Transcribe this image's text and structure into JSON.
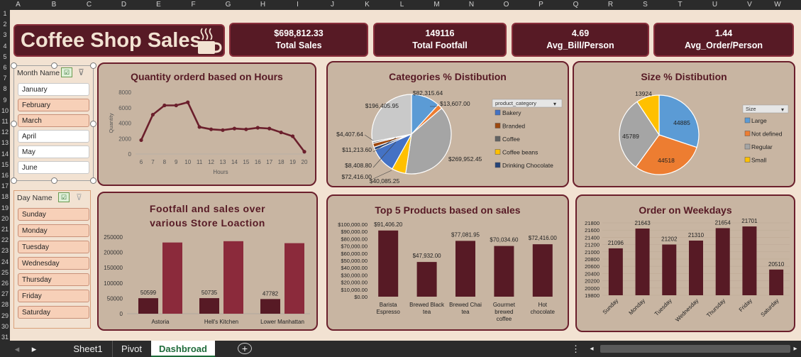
{
  "columns": [
    "A",
    "B",
    "C",
    "D",
    "E",
    "F",
    "G",
    "H",
    "I",
    "J",
    "K",
    "L",
    "M",
    "N",
    "O",
    "P",
    "Q",
    "R",
    "S",
    "T",
    "U",
    "V",
    "W"
  ],
  "rows": [
    "1",
    "2",
    "3",
    "4",
    "5",
    "6",
    "7",
    "8",
    "9",
    "10",
    "11",
    "12",
    "13",
    "14",
    "15",
    "16",
    "17",
    "18",
    "19",
    "20",
    "21",
    "22",
    "23",
    "24",
    "25",
    "26",
    "27",
    "28",
    "29",
    "30",
    "31"
  ],
  "dashboard_title": "Coffee Shop Sales",
  "kpis": [
    {
      "value": "$698,812.33",
      "label": "Total Sales"
    },
    {
      "value": "149116",
      "label": "Total Footfall"
    },
    {
      "value": "4.69",
      "label": "Avg_Bill/Person"
    },
    {
      "value": "1.44",
      "label": "Avg_Order/Person"
    }
  ],
  "month_slicer": {
    "header": "Month Name",
    "items": [
      {
        "label": "January",
        "selected": false
      },
      {
        "label": "February",
        "selected": true
      },
      {
        "label": "March",
        "selected": true
      },
      {
        "label": "April",
        "selected": false
      },
      {
        "label": "May",
        "selected": false
      },
      {
        "label": "June",
        "selected": false
      }
    ]
  },
  "day_slicer": {
    "header": "Day Name",
    "items": [
      {
        "label": "Sunday",
        "selected": true
      },
      {
        "label": "Monday",
        "selected": true
      },
      {
        "label": "Tuesday",
        "selected": true
      },
      {
        "label": "Wednesday",
        "selected": true
      },
      {
        "label": "Thursday",
        "selected": true
      },
      {
        "label": "Friday",
        "selected": true
      },
      {
        "label": "Saturday",
        "selected": true
      }
    ]
  },
  "tabs": {
    "sheet1": "Sheet1",
    "pivot": "Pivot",
    "dashboard": "Dashbroad",
    "add": "+",
    "menu": "⋮"
  },
  "colors": {
    "dark": "#571a25",
    "accent": "#8b2a3b",
    "line": "#6b1f2c",
    "blue": "#5b9bd5",
    "orange": "#ed7d31",
    "gray": "#a5a5a5",
    "gold": "#ffc000",
    "navy": "#4472c4"
  },
  "chart_data": [
    {
      "type": "line",
      "title": "Quantity orderd based on Hours",
      "xlabel": "Hours",
      "ylabel": "Quantity",
      "x": [
        6,
        7,
        8,
        9,
        10,
        11,
        12,
        13,
        14,
        15,
        16,
        17,
        18,
        19,
        20
      ],
      "values": [
        1800,
        5100,
        6300,
        6300,
        6700,
        3500,
        3200,
        3100,
        3300,
        3200,
        3400,
        3300,
        2800,
        2300,
        300
      ],
      "yticks": [
        0,
        2000,
        4000,
        6000,
        8000
      ],
      "ylim": [
        0,
        8000
      ]
    },
    {
      "type": "pie",
      "title": "Categories % Distibution",
      "legend_title": "product_category",
      "labels": [
        "Bakery",
        "Branded",
        "Coffee",
        "Coffee beans",
        "Drinking Chocolate"
      ],
      "slices": [
        {
          "label": "$82,315.64",
          "value": 82315.64
        },
        {
          "label": "$13,607.00",
          "value": 13607.0
        },
        {
          "label": "$269,952.45",
          "value": 269952.45
        },
        {
          "label": "$40,085.25",
          "value": 40085.25
        },
        {
          "label": "$72,416.00",
          "value": 72416.0
        },
        {
          "label": "$8,408.80",
          "value": 8408.8
        },
        {
          "label": "$11,213.60",
          "value": 11213.6
        },
        {
          "label": "$4,407.64",
          "value": 4407.64
        },
        {
          "label": "$196,405.95",
          "value": 196405.95
        }
      ]
    },
    {
      "type": "pie",
      "title": "Size % Distibution",
      "legend_title": "Size",
      "labels": [
        "Large",
        "Not defined",
        "Regular",
        "Small"
      ],
      "slices": [
        {
          "label": "44885",
          "value": 44885
        },
        {
          "label": "44518",
          "value": 44518
        },
        {
          "label": "45789",
          "value": 45789
        },
        {
          "label": "13924",
          "value": 13924
        }
      ]
    },
    {
      "type": "bar",
      "title": "Footfall and sales over various Store Loaction",
      "categories": [
        "Astoria",
        "Hell's Kitchen",
        "Lower Manhattan"
      ],
      "series": [
        {
          "values": [
            50599,
            50735,
            47782
          ],
          "labels": [
            "50599",
            "50735",
            "47782"
          ]
        },
        {
          "values": [
            232243,
            236511,
            230058
          ]
        }
      ],
      "yticks": [
        0,
        50000,
        100000,
        150000,
        200000,
        250000
      ],
      "ylim": [
        0,
        250000
      ]
    },
    {
      "type": "bar",
      "title": "Top 5 Products based on sales",
      "categories": [
        "Barista Espresso",
        "Brewed Black tea",
        "Brewed Chai tea",
        "Gourmet brewed coffee",
        "Hot chocolate"
      ],
      "values": [
        91406.2,
        47932.0,
        77081.95,
        70034.6,
        72416.0
      ],
      "labels": [
        "$91,406.20",
        "$47,932.00",
        "$77,081.95",
        "$70,034.60",
        "$72,416.00"
      ],
      "yticks": [
        "$0.00",
        "$10,000.00",
        "$20,000.00",
        "$30,000.00",
        "$40,000.00",
        "$50,000.00",
        "$60,000.00",
        "$70,000.00",
        "$80,000.00",
        "$90,000.00",
        "$100,000.00"
      ],
      "ylim": [
        0,
        100000
      ]
    },
    {
      "type": "bar",
      "title": "Order on Weekdays",
      "categories": [
        "Sunday",
        "Monday",
        "Tuesday",
        "Wednesday",
        "Thursday",
        "Friday",
        "Saturday"
      ],
      "values": [
        21096,
        21643,
        21202,
        21310,
        21654,
        21701,
        20510
      ],
      "labels": [
        "21096",
        "21643",
        "21202",
        "21310",
        "21654",
        "21701",
        "20510"
      ],
      "yticks": [
        "19800",
        "20000",
        "20200",
        "20400",
        "20600",
        "20800",
        "21000",
        "21200",
        "21400",
        "21600",
        "21800"
      ],
      "ylim": [
        19800,
        21800
      ]
    }
  ]
}
